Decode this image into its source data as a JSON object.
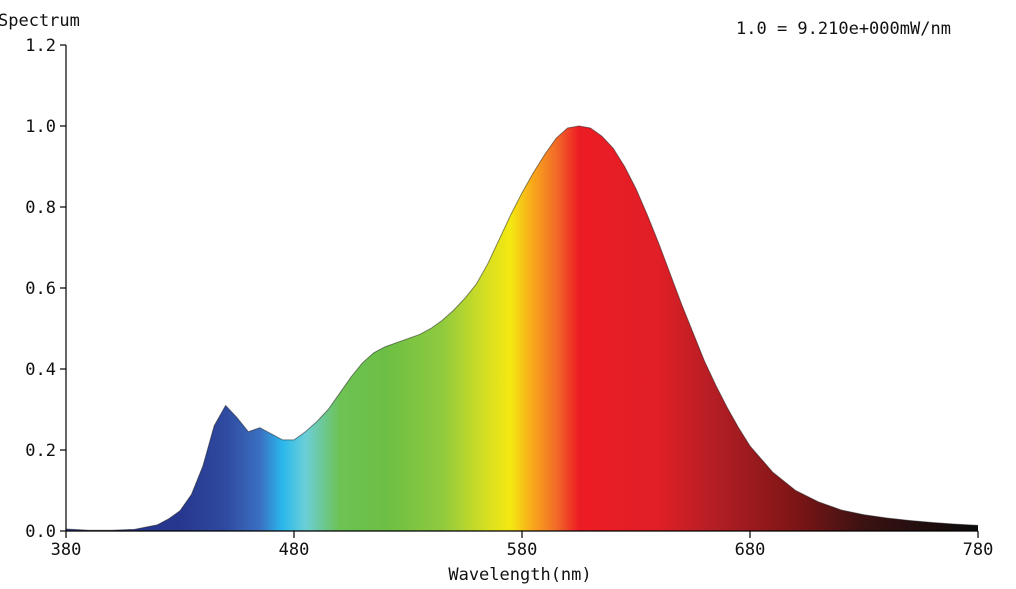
{
  "chart_data": {
    "type": "area",
    "title": "Spectrum",
    "scale_note": "1.0 = 9.210e+000mW/nm",
    "xlabel": "Wavelength(nm)",
    "ylabel": "",
    "xlim": [
      380,
      780
    ],
    "ylim": [
      0,
      1.2
    ],
    "x_ticks": [
      "380",
      "480",
      "580",
      "680",
      "780"
    ],
    "y_ticks": [
      "0.0",
      "0.2",
      "0.4",
      "0.6",
      "0.8",
      "1.0",
      "1.2"
    ],
    "fill": "spectral-gradient",
    "series": [
      {
        "x": [
          380,
          390,
          400,
          410,
          420,
          425,
          430,
          435,
          440,
          445,
          450,
          455,
          460,
          465,
          470,
          475,
          480,
          485,
          490,
          495,
          500,
          505,
          510,
          515,
          520,
          525,
          530,
          535,
          540,
          545,
          550,
          555,
          560,
          565,
          570,
          575,
          580,
          585,
          590,
          595,
          600,
          605,
          610,
          615,
          620,
          625,
          630,
          635,
          640,
          645,
          650,
          655,
          660,
          665,
          670,
          675,
          680,
          690,
          700,
          710,
          720,
          730,
          740,
          750,
          760,
          770,
          780
        ],
        "values": [
          0.005,
          0.002,
          0.002,
          0.004,
          0.015,
          0.03,
          0.05,
          0.09,
          0.16,
          0.26,
          0.31,
          0.28,
          0.245,
          0.255,
          0.24,
          0.225,
          0.225,
          0.245,
          0.27,
          0.3,
          0.34,
          0.38,
          0.415,
          0.44,
          0.455,
          0.465,
          0.475,
          0.485,
          0.5,
          0.52,
          0.545,
          0.575,
          0.61,
          0.66,
          0.72,
          0.78,
          0.835,
          0.885,
          0.93,
          0.97,
          0.995,
          1.0,
          0.995,
          0.975,
          0.945,
          0.9,
          0.845,
          0.78,
          0.71,
          0.635,
          0.56,
          0.49,
          0.42,
          0.36,
          0.305,
          0.255,
          0.21,
          0.145,
          0.1,
          0.072,
          0.052,
          0.04,
          0.032,
          0.026,
          0.021,
          0.017,
          0.014
        ]
      }
    ],
    "gradient_stops": [
      {
        "nm": 430,
        "color": "#27378f"
      },
      {
        "nm": 450,
        "color": "#2f4aa0"
      },
      {
        "nm": 465,
        "color": "#3b6fc0"
      },
      {
        "nm": 475,
        "color": "#2ab8ec"
      },
      {
        "nm": 485,
        "color": "#6bcfd8"
      },
      {
        "nm": 500,
        "color": "#6dc254"
      },
      {
        "nm": 520,
        "color": "#6cbf45"
      },
      {
        "nm": 545,
        "color": "#8fca3e"
      },
      {
        "nm": 565,
        "color": "#d9e021"
      },
      {
        "nm": 575,
        "color": "#f4e811"
      },
      {
        "nm": 585,
        "color": "#f9a51b"
      },
      {
        "nm": 595,
        "color": "#f26b28"
      },
      {
        "nm": 605,
        "color": "#ed1c24"
      },
      {
        "nm": 640,
        "color": "#e01f26"
      },
      {
        "nm": 665,
        "color": "#b21e24"
      },
      {
        "nm": 700,
        "color": "#7d1516"
      },
      {
        "nm": 730,
        "color": "#3b1212"
      },
      {
        "nm": 780,
        "color": "#0a0a0a"
      }
    ]
  }
}
